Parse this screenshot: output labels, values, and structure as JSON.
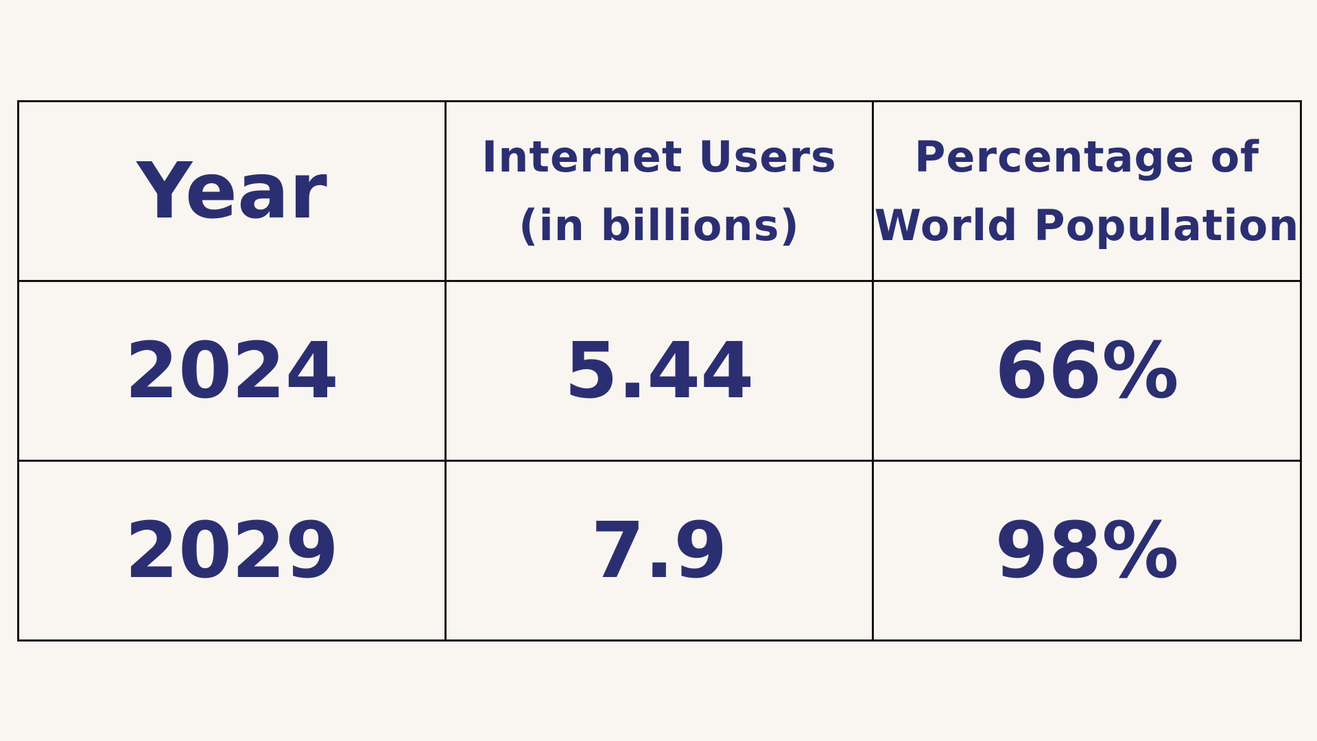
{
  "colors": {
    "background": "#f9f5f0",
    "text": "#2b2f72",
    "border": "#111111"
  },
  "chart_data": {
    "type": "table",
    "columns": [
      "Year",
      "Internet Users (in billions)",
      "Percentage of World Population"
    ],
    "header_lines": [
      [
        "Year"
      ],
      [
        "Internet Users",
        "(in billions)"
      ],
      [
        "Percentage of",
        "World Population"
      ]
    ],
    "rows": [
      [
        "2024",
        "5.44",
        "66%"
      ],
      [
        "2029",
        "7.9",
        "98%"
      ]
    ]
  }
}
